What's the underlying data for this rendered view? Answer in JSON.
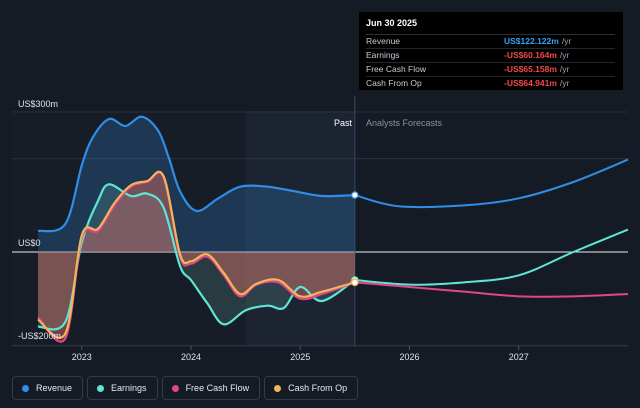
{
  "tooltip": {
    "date": "Jun 30 2025",
    "rows": [
      {
        "label": "Revenue",
        "value": "US$122.122m",
        "unit": "/yr",
        "color": "#3aa0f0"
      },
      {
        "label": "Earnings",
        "value": "-US$60.164m",
        "unit": "/yr",
        "color": "#f0484a"
      },
      {
        "label": "Free Cash Flow",
        "value": "-US$65.158m",
        "unit": "/yr",
        "color": "#f0484a"
      },
      {
        "label": "Cash From Op",
        "value": "-US$64.941m",
        "unit": "/yr",
        "color": "#f0484a"
      }
    ]
  },
  "legend": [
    {
      "label": "Revenue",
      "color": "#2f8ee8",
      "icon": "revenue-dot"
    },
    {
      "label": "Earnings",
      "color": "#5ee6d4",
      "icon": "earnings-dot"
    },
    {
      "label": "Free Cash Flow",
      "color": "#e0468a",
      "icon": "fcf-dot"
    },
    {
      "label": "Cash From Op",
      "color": "#f3b45a",
      "icon": "cfo-dot"
    }
  ],
  "chart_data": {
    "type": "area",
    "y_unit": "US$m",
    "ylim": [
      -220,
      310
    ],
    "xlim": [
      2022.6,
      2028.0
    ],
    "y_ticks": [
      {
        "value": 300,
        "label": "US$300m"
      },
      {
        "value": 0,
        "label": "US$0"
      },
      {
        "value": -200,
        "label": "-US$200m"
      }
    ],
    "x_ticks": [
      {
        "value": 2023,
        "label": "2023"
      },
      {
        "value": 2024,
        "label": "2024"
      },
      {
        "value": 2025,
        "label": "2025"
      },
      {
        "value": 2026,
        "label": "2026"
      },
      {
        "value": 2027,
        "label": "2027"
      }
    ],
    "past_label": "Past",
    "forecast_label": "Analysts Forecasts",
    "divider_x": 2025.5,
    "shade_start_x": 2024.5,
    "grid": true,
    "series": [
      {
        "name": "Revenue",
        "color": "#2f8ee8",
        "x": [
          2022.6,
          2022.85,
          2023.0,
          2023.1,
          2023.25,
          2023.4,
          2023.55,
          2023.7,
          2023.8,
          2023.9,
          2024.05,
          2024.25,
          2024.45,
          2024.7,
          2024.95,
          2025.2,
          2025.5,
          2025.9,
          2026.5,
          2027.0,
          2027.5,
          2028.0
        ],
        "y": [
          45,
          60,
          185,
          245,
          285,
          270,
          290,
          260,
          200,
          130,
          88,
          115,
          140,
          140,
          130,
          120,
          122,
          98,
          100,
          115,
          150,
          198
        ],
        "forecast_from": 16
      },
      {
        "name": "Earnings",
        "color": "#5ee6d4",
        "x": [
          2022.6,
          2022.85,
          2023.0,
          2023.15,
          2023.25,
          2023.45,
          2023.6,
          2023.75,
          2023.9,
          2024.0,
          2024.15,
          2024.3,
          2024.5,
          2024.7,
          2024.85,
          2025.0,
          2025.2,
          2025.5,
          2026.0,
          2026.5,
          2027.0,
          2027.5,
          2028.0
        ],
        "y": [
          -160,
          -150,
          20,
          110,
          145,
          120,
          125,
          95,
          -30,
          -60,
          -110,
          -155,
          -125,
          -115,
          -120,
          -75,
          -105,
          -60,
          -70,
          -65,
          -50,
          0,
          48
        ],
        "forecast_from": 17
      },
      {
        "name": "Free Cash Flow",
        "color": "#e0468a",
        "x": [
          2022.6,
          2022.85,
          2023.0,
          2023.15,
          2023.3,
          2023.45,
          2023.6,
          2023.75,
          2023.9,
          2024.0,
          2024.15,
          2024.3,
          2024.45,
          2024.6,
          2024.8,
          2025.0,
          2025.2,
          2025.5,
          2026.0,
          2026.5,
          2027.0,
          2027.5,
          2028.0
        ],
        "y": [
          -140,
          -185,
          30,
          45,
          100,
          140,
          150,
          160,
          -10,
          -25,
          -10,
          -50,
          -95,
          -70,
          -65,
          -100,
          -90,
          -65,
          -75,
          -85,
          -95,
          -95,
          -90
        ],
        "forecast_from": 17
      },
      {
        "name": "Cash From Op",
        "color": "#f3b45a",
        "x": [
          2022.6,
          2022.85,
          2023.0,
          2023.15,
          2023.3,
          2023.45,
          2023.6,
          2023.75,
          2023.9,
          2024.0,
          2024.15,
          2024.3,
          2024.45,
          2024.6,
          2024.8,
          2025.0,
          2025.2,
          2025.5
        ],
        "y": [
          -145,
          -175,
          35,
          50,
          105,
          143,
          152,
          162,
          -5,
          -20,
          -5,
          -45,
          -90,
          -68,
          -60,
          -95,
          -85,
          -65
        ],
        "forecast_from": 99
      }
    ]
  }
}
